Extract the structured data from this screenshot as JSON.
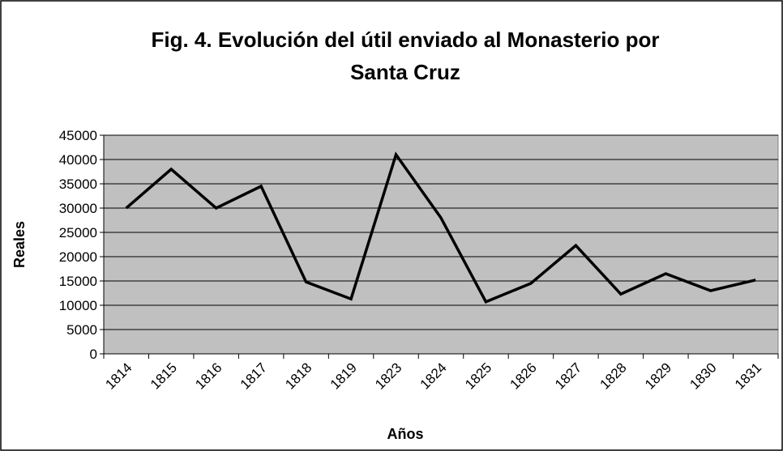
{
  "chart_data": {
    "type": "line",
    "title": [
      "Fig. 4. Evolución del útil enviado al Monasterio por",
      "Santa Cruz"
    ],
    "x_label": "Años",
    "y_label": "Reales",
    "categories": [
      "1814",
      "1815",
      "1816",
      "1817",
      "1818",
      "1819",
      "1823",
      "1824",
      "1825",
      "1826",
      "1827",
      "1828",
      "1829",
      "1830",
      "1831"
    ],
    "values": [
      30000,
      38000,
      30000,
      34500,
      14800,
      11300,
      41000,
      28000,
      10700,
      14500,
      22300,
      12300,
      16500,
      13000,
      15200
    ],
    "color": "#000000",
    "ylim": [
      0,
      45000
    ],
    "yticks": [
      0,
      5000,
      10000,
      15000,
      20000,
      25000,
      30000,
      35000,
      40000,
      45000
    ],
    "grid": true
  }
}
